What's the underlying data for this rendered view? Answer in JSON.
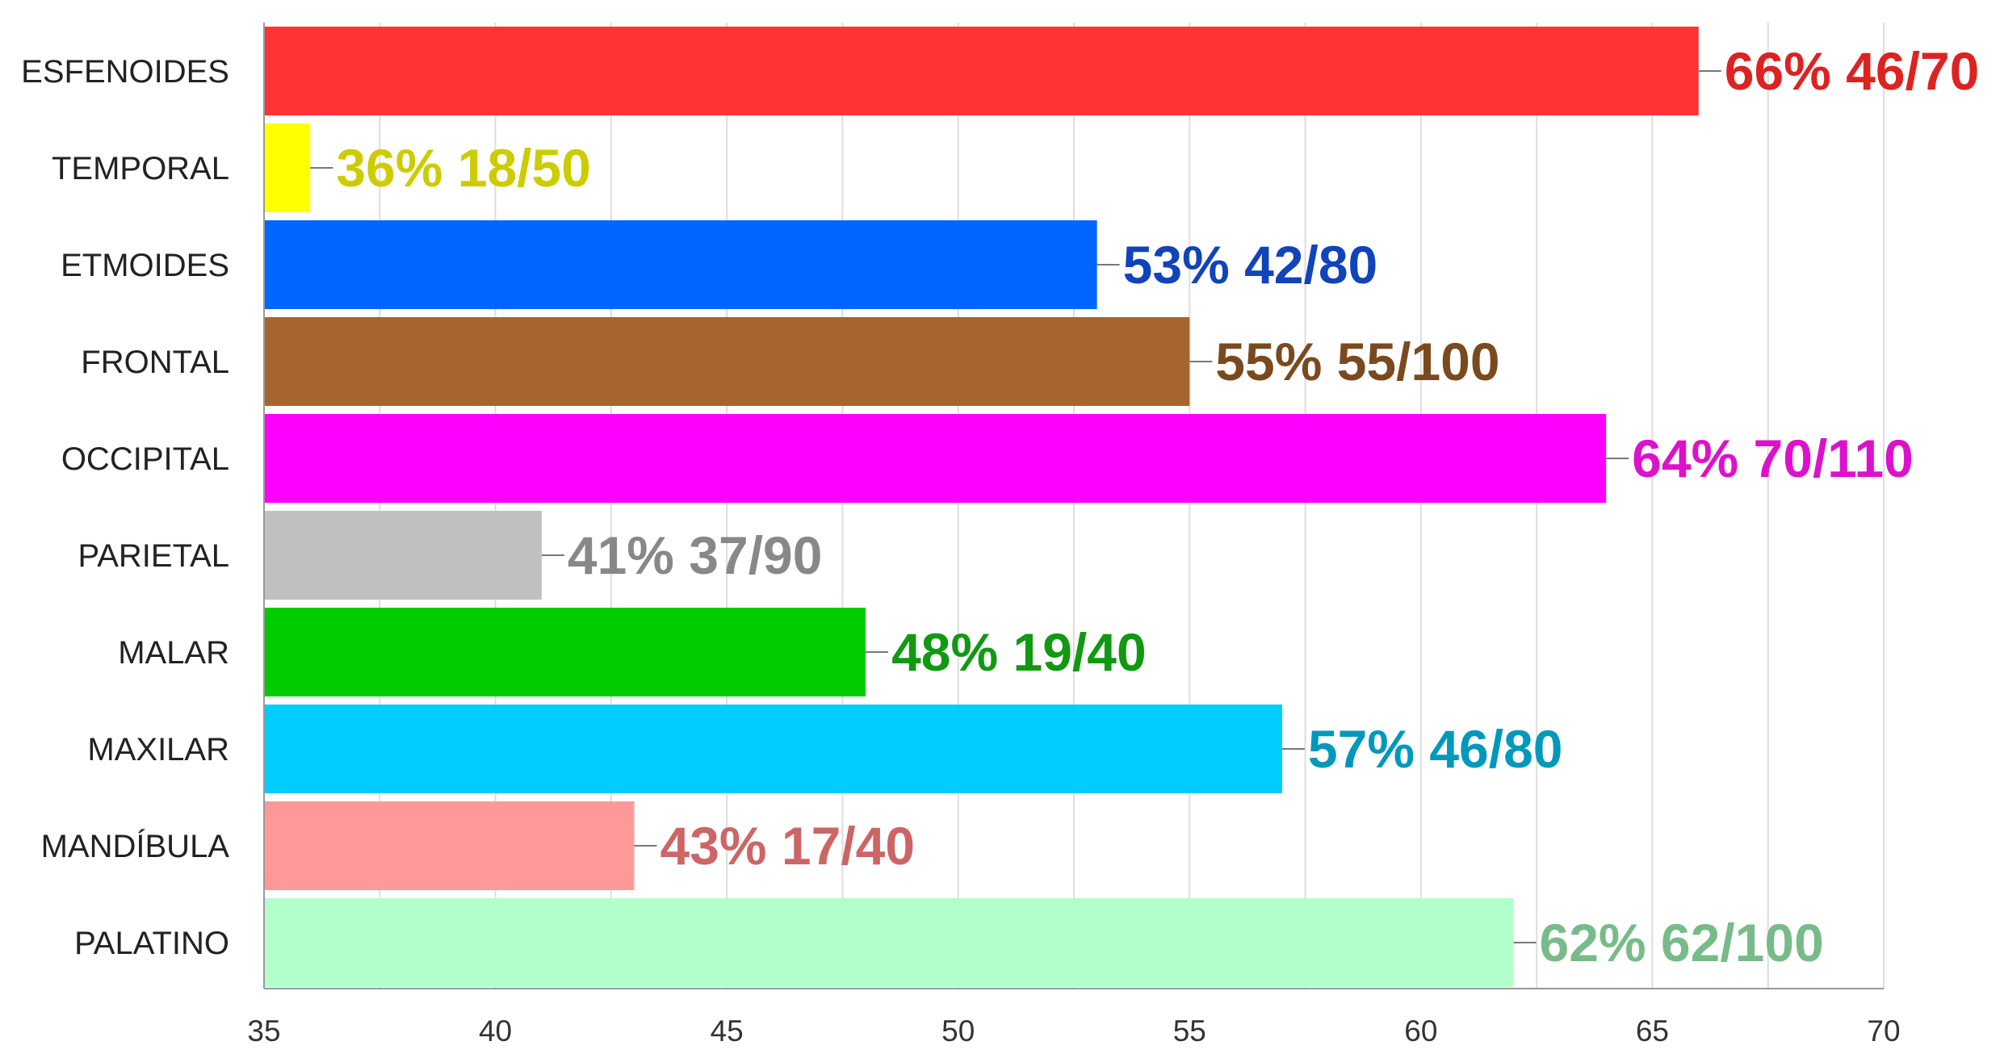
{
  "chart_data": {
    "type": "bar",
    "orientation": "horizontal",
    "title": "",
    "xlabel": "",
    "ylabel": "",
    "xlim": [
      35,
      70
    ],
    "x_ticks": [
      35,
      40,
      45,
      50,
      55,
      60,
      65,
      70
    ],
    "grid": true,
    "legend": "none",
    "categories": [
      "ESFENOIDES",
      "TEMPORAL",
      "ETMOIDES",
      "FRONTAL",
      "OCCIPITAL",
      "PARIETAL",
      "MALAR",
      "MAXILAR",
      "MANDÍBULA",
      "PALATINO"
    ],
    "values": [
      66,
      36,
      53,
      55,
      64,
      41,
      48,
      57,
      43,
      62
    ],
    "data_labels": [
      "66% 46/70",
      "36% 18/50",
      "53% 42/80",
      "55% 55/100",
      "64% 70/110",
      "41% 37/90",
      "48% 19/40",
      "57% 46/80",
      "43% 17/40",
      "62% 62/100"
    ],
    "bar_colors": [
      "#ff3333",
      "#ffff00",
      "#0066ff",
      "#a8642e",
      "#ff00ff",
      "#c0c0c0",
      "#00cc00",
      "#00ccff",
      "#ff9999",
      "#b3ffcc"
    ],
    "label_colors": [
      "#dd2222",
      "#cccc00",
      "#1144bb",
      "#7a4a1e",
      "#dd11cc",
      "#888888",
      "#119911",
      "#0099bb",
      "#cc6666",
      "#77bb88"
    ]
  }
}
